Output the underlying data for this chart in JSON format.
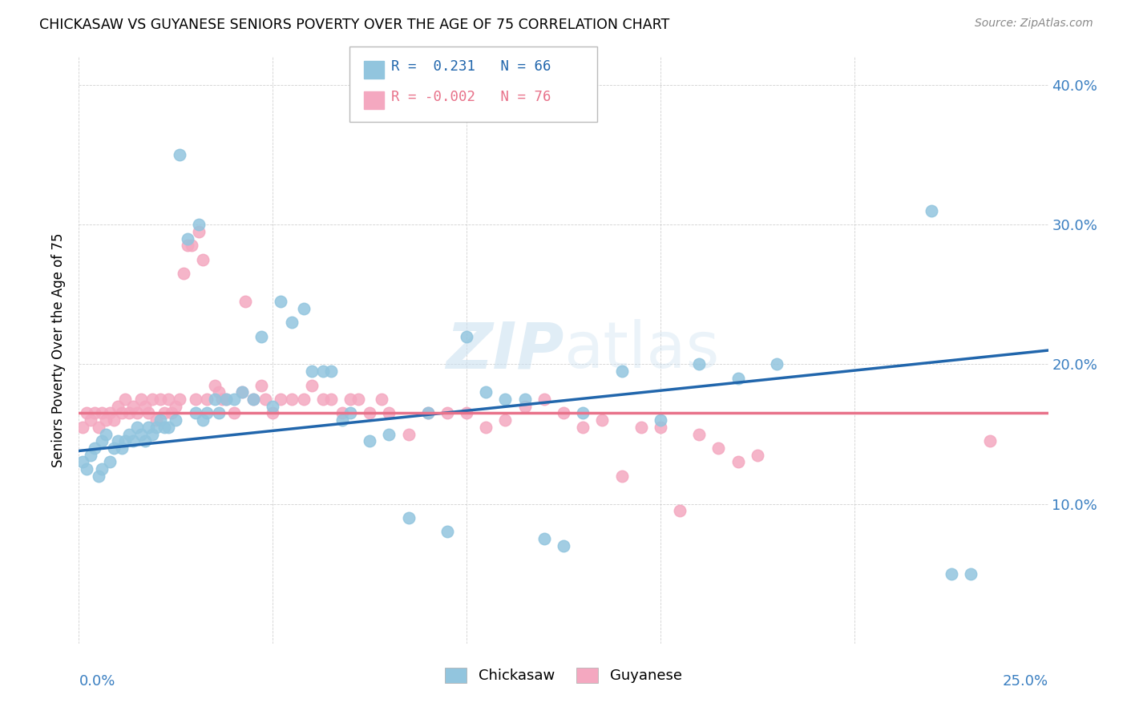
{
  "title": "CHICKASAW VS GUYANESE SENIORS POVERTY OVER THE AGE OF 75 CORRELATION CHART",
  "source": "Source: ZipAtlas.com",
  "ylabel": "Seniors Poverty Over the Age of 75",
  "xlim": [
    0.0,
    0.25
  ],
  "ylim": [
    0.0,
    0.42
  ],
  "chickasaw_color": "#92c5de",
  "guyanese_color": "#f4a8c0",
  "chickasaw_line_color": "#2166ac",
  "guyanese_line_color": "#e8728a",
  "background_color": "#ffffff",
  "chickasaw_line_x0": 0.0,
  "chickasaw_line_y0": 0.138,
  "chickasaw_line_x1": 0.25,
  "chickasaw_line_y1": 0.21,
  "guyanese_line_x0": 0.0,
  "guyanese_line_y0": 0.165,
  "guyanese_line_x1": 0.25,
  "guyanese_line_y1": 0.165,
  "chickasaw_x": [
    0.001,
    0.002,
    0.003,
    0.004,
    0.005,
    0.006,
    0.006,
    0.007,
    0.008,
    0.009,
    0.01,
    0.011,
    0.012,
    0.013,
    0.014,
    0.015,
    0.016,
    0.017,
    0.018,
    0.019,
    0.02,
    0.021,
    0.022,
    0.023,
    0.025,
    0.026,
    0.028,
    0.03,
    0.031,
    0.032,
    0.033,
    0.035,
    0.036,
    0.038,
    0.04,
    0.042,
    0.045,
    0.047,
    0.05,
    0.052,
    0.055,
    0.058,
    0.06,
    0.063,
    0.065,
    0.068,
    0.07,
    0.075,
    0.08,
    0.085,
    0.09,
    0.095,
    0.1,
    0.105,
    0.11,
    0.115,
    0.12,
    0.125,
    0.13,
    0.14,
    0.15,
    0.16,
    0.17,
    0.18,
    0.22,
    0.225,
    0.23
  ],
  "chickasaw_y": [
    0.13,
    0.125,
    0.135,
    0.14,
    0.12,
    0.145,
    0.125,
    0.15,
    0.13,
    0.14,
    0.145,
    0.14,
    0.145,
    0.15,
    0.145,
    0.155,
    0.15,
    0.145,
    0.155,
    0.15,
    0.155,
    0.16,
    0.155,
    0.155,
    0.16,
    0.35,
    0.29,
    0.165,
    0.3,
    0.16,
    0.165,
    0.175,
    0.165,
    0.175,
    0.175,
    0.18,
    0.175,
    0.22,
    0.17,
    0.245,
    0.23,
    0.24,
    0.195,
    0.195,
    0.195,
    0.16,
    0.165,
    0.145,
    0.15,
    0.09,
    0.165,
    0.08,
    0.22,
    0.18,
    0.175,
    0.175,
    0.075,
    0.07,
    0.165,
    0.195,
    0.16,
    0.2,
    0.19,
    0.2,
    0.31,
    0.05,
    0.05
  ],
  "guyanese_x": [
    0.001,
    0.002,
    0.003,
    0.004,
    0.005,
    0.006,
    0.007,
    0.008,
    0.009,
    0.01,
    0.011,
    0.012,
    0.013,
    0.014,
    0.015,
    0.016,
    0.017,
    0.018,
    0.019,
    0.02,
    0.021,
    0.022,
    0.023,
    0.024,
    0.025,
    0.026,
    0.027,
    0.028,
    0.029,
    0.03,
    0.031,
    0.032,
    0.033,
    0.035,
    0.036,
    0.037,
    0.038,
    0.04,
    0.042,
    0.043,
    0.045,
    0.047,
    0.048,
    0.05,
    0.052,
    0.055,
    0.058,
    0.06,
    0.063,
    0.065,
    0.068,
    0.07,
    0.072,
    0.075,
    0.078,
    0.08,
    0.085,
    0.09,
    0.095,
    0.1,
    0.105,
    0.11,
    0.115,
    0.12,
    0.125,
    0.13,
    0.135,
    0.14,
    0.145,
    0.15,
    0.155,
    0.16,
    0.165,
    0.17,
    0.175,
    0.235
  ],
  "guyanese_y": [
    0.155,
    0.165,
    0.16,
    0.165,
    0.155,
    0.165,
    0.16,
    0.165,
    0.16,
    0.17,
    0.165,
    0.175,
    0.165,
    0.17,
    0.165,
    0.175,
    0.17,
    0.165,
    0.175,
    0.16,
    0.175,
    0.165,
    0.175,
    0.165,
    0.17,
    0.175,
    0.265,
    0.285,
    0.285,
    0.175,
    0.295,
    0.275,
    0.175,
    0.185,
    0.18,
    0.175,
    0.175,
    0.165,
    0.18,
    0.245,
    0.175,
    0.185,
    0.175,
    0.165,
    0.175,
    0.175,
    0.175,
    0.185,
    0.175,
    0.175,
    0.165,
    0.175,
    0.175,
    0.165,
    0.175,
    0.165,
    0.15,
    0.165,
    0.165,
    0.165,
    0.155,
    0.16,
    0.17,
    0.175,
    0.165,
    0.155,
    0.16,
    0.12,
    0.155,
    0.155,
    0.095,
    0.15,
    0.14,
    0.13,
    0.135,
    0.145
  ]
}
